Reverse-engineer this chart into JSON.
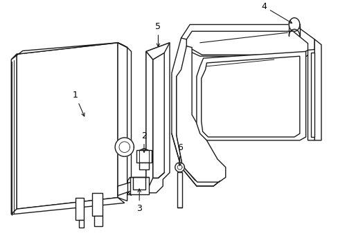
{
  "background_color": "#ffffff",
  "line_color": "#1a1a1a",
  "line_width": 1.0,
  "figsize": [
    4.89,
    3.6
  ],
  "dpi": 100
}
